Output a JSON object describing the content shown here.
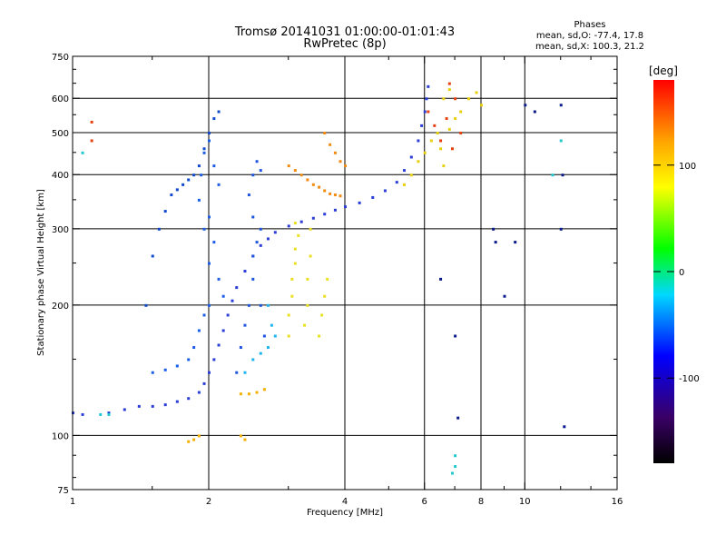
{
  "header": {
    "title_line1": "Tromsø 20141031 01:00:00-01:01:43",
    "title_line2": "RwPretec (8p)",
    "phases_title": "Phases",
    "phases_o": "mean, sd,O: -77.4, 17.8",
    "phases_x": "mean, sd,X: 100.3, 21.2"
  },
  "chart_data": {
    "type": "scatter",
    "title": "Tromsø 20141031 01:00:00-01:01:43",
    "subtitle": "RwPretec (8p)",
    "xlabel": "Frequency [MHz]",
    "ylabel": "Stationary phase Virtual Height [km]",
    "x_scale": "log",
    "y_scale": "log",
    "xlim": [
      1,
      16
    ],
    "ylim": [
      75,
      750
    ],
    "x_ticks": [
      1,
      2,
      4,
      6,
      8,
      10,
      16
    ],
    "x_minor_ticks": [
      1.5,
      3,
      5,
      7,
      9,
      12,
      14
    ],
    "y_ticks": [
      75,
      100,
      200,
      300,
      400,
      500,
      600,
      750
    ],
    "y_minor_ticks": [
      80,
      90,
      150,
      250,
      350,
      450,
      550,
      650,
      700
    ],
    "grid_x": [
      2,
      4,
      6,
      8,
      10
    ],
    "grid_y": [
      100,
      200,
      300,
      400,
      500,
      600
    ],
    "colorbar": {
      "label": "[deg]",
      "range": [
        -180,
        180
      ],
      "ticks": [
        100,
        0,
        -100
      ],
      "colormap": [
        "#000000",
        "#3a0066",
        "#0000ff",
        "#00d8ff",
        "#00ff00",
        "#ffff00",
        "#ffa500",
        "#ff0000"
      ]
    },
    "series": [
      {
        "color": "#2a3dd6",
        "points": [
          [
            1.0,
            113
          ],
          [
            1.05,
            112
          ],
          [
            1.2,
            113
          ],
          [
            1.3,
            115
          ],
          [
            1.4,
            117
          ],
          [
            1.5,
            117
          ],
          [
            1.6,
            118
          ],
          [
            1.7,
            120
          ],
          [
            1.8,
            122
          ],
          [
            1.9,
            126
          ],
          [
            1.95,
            132
          ],
          [
            2.0,
            140
          ],
          [
            2.05,
            150
          ],
          [
            2.1,
            162
          ],
          [
            2.15,
            175
          ],
          [
            2.2,
            190
          ],
          [
            2.25,
            205
          ],
          [
            2.3,
            220
          ],
          [
            2.4,
            240
          ],
          [
            2.5,
            260
          ],
          [
            2.6,
            275
          ],
          [
            2.7,
            285
          ],
          [
            2.8,
            295
          ],
          [
            3.0,
            305
          ],
          [
            3.2,
            312
          ],
          [
            3.4,
            318
          ],
          [
            3.6,
            325
          ],
          [
            3.8,
            332
          ],
          [
            4.0,
            338
          ],
          [
            4.3,
            345
          ],
          [
            4.6,
            355
          ],
          [
            4.9,
            368
          ],
          [
            5.2,
            385
          ],
          [
            5.4,
            410
          ],
          [
            5.6,
            440
          ],
          [
            5.8,
            480
          ],
          [
            5.9,
            520
          ],
          [
            6.0,
            560
          ],
          [
            6.05,
            600
          ],
          [
            6.1,
            640
          ]
        ]
      },
      {
        "color": "#1a5ee8",
        "points": [
          [
            1.5,
            140
          ],
          [
            1.6,
            142
          ],
          [
            1.7,
            145
          ],
          [
            1.8,
            150
          ],
          [
            1.85,
            160
          ],
          [
            1.9,
            175
          ],
          [
            1.95,
            190
          ],
          [
            2.0,
            200
          ],
          [
            2.0,
            250
          ],
          [
            1.95,
            300
          ],
          [
            1.9,
            350
          ],
          [
            1.92,
            400
          ],
          [
            1.95,
            450
          ],
          [
            2.0,
            480
          ],
          [
            2.05,
            420
          ],
          [
            2.1,
            380
          ],
          [
            2.0,
            320
          ],
          [
            2.05,
            280
          ],
          [
            2.1,
            230
          ],
          [
            2.15,
            210
          ]
        ]
      },
      {
        "color": "#1e55dd",
        "points": [
          [
            2.3,
            140
          ],
          [
            2.35,
            160
          ],
          [
            2.4,
            180
          ],
          [
            2.45,
            200
          ],
          [
            2.5,
            230
          ],
          [
            2.5,
            260
          ],
          [
            2.55,
            280
          ],
          [
            2.5,
            320
          ],
          [
            2.45,
            360
          ],
          [
            2.5,
            400
          ],
          [
            2.55,
            430
          ],
          [
            2.6,
            410
          ],
          [
            2.6,
            300
          ],
          [
            2.6,
            200
          ],
          [
            2.65,
            170
          ]
        ]
      },
      {
        "color": "#0f4acd",
        "points": [
          [
            1.45,
            200
          ],
          [
            1.5,
            260
          ],
          [
            1.55,
            300
          ],
          [
            1.6,
            330
          ],
          [
            1.65,
            360
          ],
          [
            1.7,
            370
          ],
          [
            1.75,
            380
          ],
          [
            1.8,
            390
          ],
          [
            1.85,
            400
          ],
          [
            1.9,
            420
          ],
          [
            1.95,
            460
          ],
          [
            2.0,
            500
          ],
          [
            2.05,
            540
          ],
          [
            2.1,
            560
          ]
        ]
      },
      {
        "color": "#1fb4f0",
        "points": [
          [
            2.4,
            140
          ],
          [
            2.5,
            150
          ],
          [
            2.6,
            155
          ],
          [
            2.7,
            160
          ],
          [
            2.75,
            180
          ],
          [
            2.7,
            200
          ],
          [
            2.8,
            170
          ]
        ]
      },
      {
        "color": "#e8e020",
        "points": [
          [
            3.0,
            170
          ],
          [
            3.0,
            190
          ],
          [
            3.05,
            210
          ],
          [
            3.05,
            230
          ],
          [
            3.1,
            250
          ],
          [
            3.1,
            270
          ],
          [
            3.15,
            290
          ],
          [
            3.1,
            310
          ],
          [
            3.25,
            180
          ],
          [
            3.3,
            200
          ],
          [
            3.3,
            230
          ],
          [
            3.35,
            260
          ],
          [
            3.35,
            300
          ],
          [
            3.5,
            170
          ],
          [
            3.55,
            190
          ],
          [
            3.6,
            210
          ],
          [
            3.65,
            230
          ]
        ]
      },
      {
        "color": "#f08a10",
        "points": [
          [
            3.0,
            420
          ],
          [
            3.1,
            410
          ],
          [
            3.2,
            400
          ],
          [
            3.3,
            390
          ],
          [
            3.4,
            380
          ],
          [
            3.5,
            375
          ],
          [
            3.6,
            368
          ],
          [
            3.7,
            362
          ],
          [
            3.8,
            360
          ],
          [
            3.9,
            358
          ],
          [
            3.6,
            500
          ],
          [
            3.7,
            470
          ],
          [
            3.8,
            450
          ],
          [
            3.9,
            430
          ],
          [
            4.0,
            420
          ]
        ]
      },
      {
        "color": "#f4b000",
        "points": [
          [
            2.35,
            125
          ],
          [
            2.45,
            125
          ],
          [
            2.55,
            126
          ],
          [
            2.65,
            128
          ],
          [
            1.8,
            97
          ],
          [
            1.85,
            98
          ],
          [
            1.9,
            100
          ],
          [
            2.35,
            100
          ],
          [
            2.4,
            98
          ]
        ]
      },
      {
        "color": "#e8d010",
        "points": [
          [
            5.4,
            380
          ],
          [
            5.6,
            400
          ],
          [
            5.8,
            430
          ],
          [
            6.0,
            450
          ],
          [
            6.2,
            480
          ],
          [
            6.4,
            500
          ],
          [
            6.5,
            460
          ],
          [
            6.6,
            420
          ],
          [
            6.8,
            510
          ],
          [
            7.0,
            540
          ],
          [
            6.6,
            600
          ],
          [
            6.8,
            630
          ],
          [
            7.2,
            560
          ],
          [
            7.5,
            600
          ],
          [
            7.8,
            620
          ],
          [
            8.0,
            580
          ]
        ]
      },
      {
        "color": "#e64010",
        "points": [
          [
            6.1,
            560
          ],
          [
            6.3,
            520
          ],
          [
            6.5,
            480
          ],
          [
            6.7,
            540
          ],
          [
            7.0,
            600
          ],
          [
            6.9,
            460
          ],
          [
            7.2,
            500
          ],
          [
            6.8,
            650
          ],
          [
            1.1,
            530
          ],
          [
            1.1,
            480
          ]
        ]
      },
      {
        "color": "#0a1a8a",
        "points": [
          [
            8.5,
            300
          ],
          [
            8.6,
            280
          ],
          [
            9.0,
            210
          ],
          [
            9.5,
            280
          ],
          [
            10.0,
            580
          ],
          [
            10.5,
            560
          ],
          [
            12.0,
            580
          ],
          [
            12.1,
            400
          ],
          [
            6.5,
            230
          ],
          [
            7.0,
            170
          ],
          [
            7.1,
            110
          ],
          [
            12.2,
            105
          ],
          [
            12.0,
            300
          ]
        ]
      },
      {
        "color": "#20c8d0",
        "points": [
          [
            1.15,
            112
          ],
          [
            1.2,
            112
          ],
          [
            6.9,
            82
          ],
          [
            7.0,
            85
          ],
          [
            7.0,
            90
          ],
          [
            11.5,
            400
          ],
          [
            12.0,
            480
          ],
          [
            1.05,
            450
          ]
        ]
      }
    ]
  }
}
